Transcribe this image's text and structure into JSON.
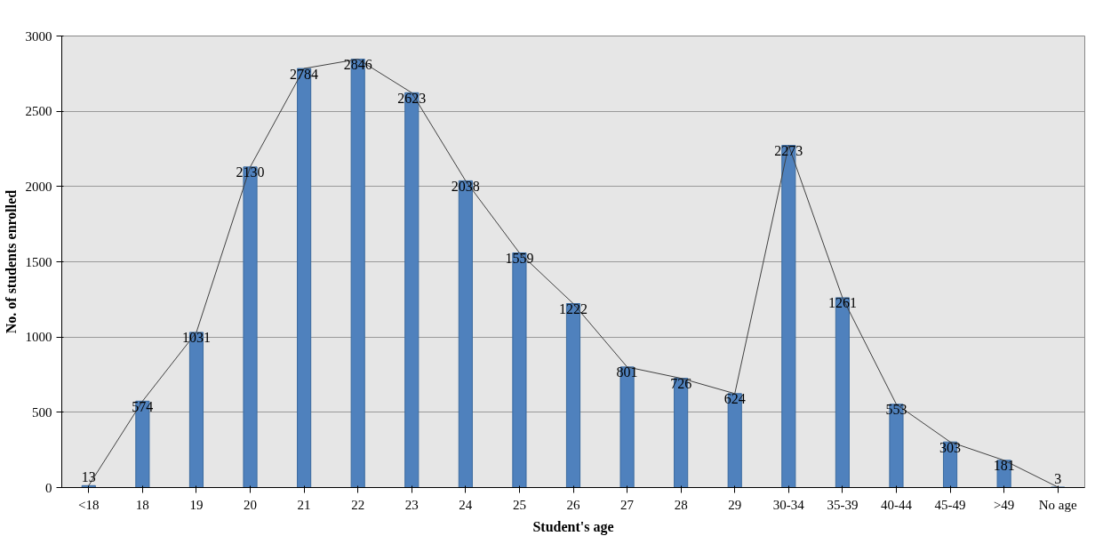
{
  "chart_data": {
    "type": "bar",
    "xlabel": "Student's age",
    "ylabel": "No. of students enrolled",
    "categories": [
      "<18",
      "18",
      "19",
      "20",
      "21",
      "22",
      "23",
      "24",
      "25",
      "26",
      "27",
      "28",
      "29",
      "30-34",
      "35-39",
      "40-44",
      "45-49",
      ">49",
      "No age"
    ],
    "series": [
      {
        "color": "#4f81bd",
        "values": [
          13,
          574,
          1031,
          2130,
          2784,
          2846,
          2623,
          2038,
          1559,
          1222,
          801,
          726,
          624,
          2273,
          1261,
          553,
          303,
          181,
          3
        ],
        "value_labels": [
          "13",
          "574",
          "1031",
          "2130",
          "2784",
          "2846",
          "2623",
          "2038",
          "1559",
          "1222",
          "801",
          "726",
          "624",
          "2273",
          "1261",
          "553",
          "303",
          "181",
          "3"
        ]
      },
      {
        "type": "line",
        "color": "#404040",
        "values": [
          13,
          574,
          1031,
          2130,
          2784,
          2846,
          2623,
          2038,
          1559,
          1222,
          801,
          726,
          624,
          2273,
          1261,
          553,
          303,
          181,
          3
        ]
      }
    ],
    "ylim": [
      0,
      3000
    ],
    "yticks": [
      0,
      500,
      1000,
      1500,
      2000,
      2500,
      3000
    ],
    "grid": "y"
  }
}
